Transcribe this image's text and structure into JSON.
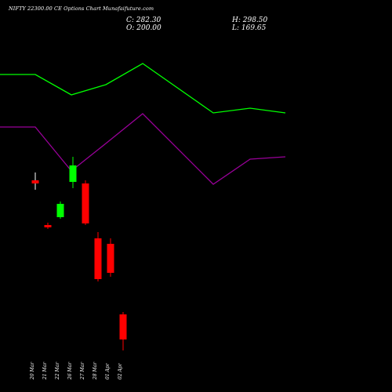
{
  "header": {
    "title": "NIFTY 22300.00 CE Options Chart Munafaifuture.com",
    "close": "C: 282.30",
    "open": "O: 200.00",
    "high": "H: 298.50",
    "low": "L: 169.65"
  },
  "chart_data": {
    "type": "candlestick",
    "categories": [
      "20 Mar",
      "21 Mar",
      "22 Mar",
      "26 Mar",
      "27 Mar",
      "28 Mar",
      "01 Apr",
      "02 Apr"
    ],
    "candles": [
      {
        "date": "20 Mar",
        "open": 70,
        "high": 80,
        "low": 58,
        "close": 66
      },
      {
        "date": "21 Mar",
        "open": 13,
        "high": 16,
        "low": 8,
        "close": 10
      },
      {
        "date": "22 Mar",
        "open": 23,
        "high": 43,
        "low": 21,
        "close": 40
      },
      {
        "date": "26 Mar",
        "open": 68,
        "high": 100,
        "low": 60,
        "close": 89
      },
      {
        "date": "27 Mar",
        "open": 66,
        "high": 70,
        "low": 13,
        "close": 15
      },
      {
        "date": "28 Mar",
        "open": -4,
        "high": 4,
        "low": -59,
        "close": -56
      },
      {
        "date": "01 Apr",
        "open": -11,
        "high": -4,
        "low": -53,
        "close": -48
      },
      {
        "date": "02 Apr",
        "open": -101,
        "high": -98,
        "low": -147,
        "close": -133
      }
    ],
    "lines": [
      {
        "color": "#00ff00",
        "values": [
          95,
          95,
          121,
          108,
          81,
          144,
          138,
          144
        ]
      },
      {
        "color": "#990099",
        "values": [
          162,
          162,
          218,
          183,
          145,
          235,
          203,
          200
        ]
      }
    ],
    "colors": {
      "up": "#00ff00",
      "down": "#ff0000",
      "neutral": "#ffffff",
      "background": "#000000"
    }
  }
}
